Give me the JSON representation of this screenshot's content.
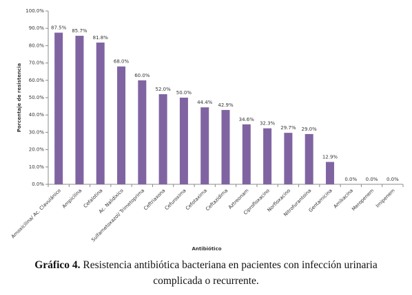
{
  "chart_data": {
    "type": "bar",
    "xlabel": "Antibiótico",
    "ylabel": "Porcentaje de resistencia",
    "categories": [
      "Amoxicilina/ Ac. Clavulánico",
      "Ampicilina",
      "Cefalotina",
      "Ac. Nalidixico",
      "Sulfametoxazol/ Trimetoprima",
      "Ceftriaxona",
      "Cefuroxima",
      "Cefotaxima",
      "Ceftazidima",
      "Aztreonam",
      "Ciprofloxacino",
      "Norfloxacino",
      "Nitrofurantoina",
      "Gentamicina",
      "Amikacina",
      "Meropenem",
      "Imipenem"
    ],
    "values": [
      87.5,
      85.7,
      81.8,
      68.0,
      60.0,
      52.0,
      50.0,
      44.4,
      42.9,
      34.6,
      32.3,
      29.7,
      29.0,
      12.9,
      0.0,
      0.0,
      0.0
    ],
    "value_labels": [
      "87.5%",
      "85.7%",
      "81.8%",
      "68.0%",
      "60.0%",
      "52.0%",
      "50.0%",
      "44.4%",
      "42.9%",
      "34.6%",
      "32.3%",
      "29.7%",
      "29.0%",
      "12.9%",
      "0.0%",
      "0.0%",
      "0.0%"
    ],
    "color": "#8064a2",
    "ylim": [
      0,
      100
    ],
    "yticks": [
      {
        "value": 0,
        "label": "0.0%"
      },
      {
        "value": 10,
        "label": "10.0%"
      },
      {
        "value": 20,
        "label": "20.0%"
      },
      {
        "value": 30,
        "label": "30.0%"
      },
      {
        "value": 40,
        "label": "40.0%"
      },
      {
        "value": 50,
        "label": "50.0%"
      },
      {
        "value": 60,
        "label": "60.0%"
      },
      {
        "value": 70,
        "label": "70.0%"
      },
      {
        "value": 80,
        "label": "80.0%"
      },
      {
        "value": 90,
        "label": "90.0%"
      },
      {
        "value": 100,
        "label": "100.0%"
      }
    ],
    "grid": false
  },
  "caption": {
    "label": "Gráfico 4.",
    "text": "Resistencia antibiótica bacteriana en pacientes con infección urinaria complicada o recurrente."
  }
}
